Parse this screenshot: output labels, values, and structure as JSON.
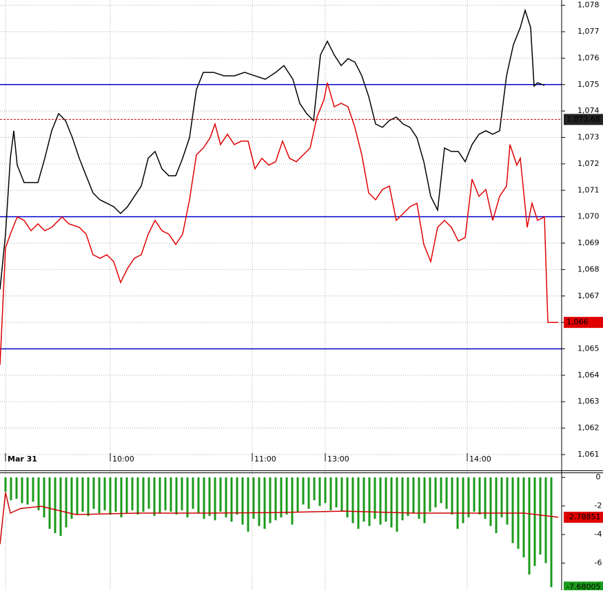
{
  "chart_data": [
    {
      "type": "line",
      "xlim": [
        0,
        204
      ],
      "xticks": [
        {
          "value": 2,
          "label": "Mar 31"
        },
        {
          "value": 40,
          "label": "10:00"
        },
        {
          "value": 91.5,
          "label": "11:00"
        },
        {
          "value": 118,
          "label": "13:00"
        },
        {
          "value": 169.5,
          "label": "14:00"
        }
      ],
      "ylim": [
        1060.4,
        1078.2
      ],
      "yticks": [
        {
          "value": 1061,
          "label": "1,061"
        },
        {
          "value": 1062,
          "label": "1,062"
        },
        {
          "value": 1063,
          "label": "1,063"
        },
        {
          "value": 1064,
          "label": "1,064"
        },
        {
          "value": 1065,
          "label": "1,065"
        },
        {
          "value": 1066,
          "label": "1,066"
        },
        {
          "value": 1067,
          "label": "1,067"
        },
        {
          "value": 1068,
          "label": "1,068"
        },
        {
          "value": 1069,
          "label": "1,069"
        },
        {
          "value": 1070,
          "label": "1,070"
        },
        {
          "value": 1071,
          "label": "1,071"
        },
        {
          "value": 1072,
          "label": "1,072"
        },
        {
          "value": 1073,
          "label": "1,073"
        },
        {
          "value": 1074,
          "label": "1,074"
        },
        {
          "value": 1075,
          "label": "1,075"
        },
        {
          "value": 1076,
          "label": "1,076"
        },
        {
          "value": 1077,
          "label": "1,077"
        },
        {
          "value": 1078,
          "label": "1,078"
        }
      ],
      "grid": true,
      "hlines": [
        {
          "value": 1075,
          "color": "#0000cc"
        },
        {
          "value": 1070,
          "color": "#0000cc"
        },
        {
          "value": 1065,
          "color": "#0000cc"
        }
      ],
      "series": [
        {
          "color": "#000000",
          "x": [
            0,
            2,
            3.75,
            5,
            6.25,
            8.75,
            11.25,
            13.75,
            16.25,
            18.75,
            21.25,
            23.75,
            26.25,
            28.75,
            31.25,
            33.75,
            36.25,
            38.75,
            41.25,
            43.75,
            46.25,
            48.75,
            51.25,
            53.75,
            56.25,
            58.75,
            61.25,
            63.75,
            66.25,
            68.75,
            71.25,
            73.75,
            77.5,
            81.25,
            85,
            88.75,
            92.5,
            96.25,
            100,
            103,
            106.25,
            108.75,
            111.25,
            113.75,
            116.25,
            118.75,
            121.25,
            123.75,
            126.25,
            128.75,
            131.25,
            133.75,
            136.25,
            138.75,
            141.25,
            143.75,
            146.25,
            148.75,
            151.25,
            153.75,
            156.25,
            158.75,
            161.25,
            163.75,
            166.25,
            168.75,
            171.25,
            173.75,
            176.25,
            178.75,
            181.25,
            183.75,
            186.25,
            188.75,
            190.5,
            192.5,
            193.75,
            195,
            197.5
          ],
          "values": [
            1067.25,
            1069.34,
            1072.21,
            1073.25,
            1071.95,
            1071.29,
            1071.29,
            1071.29,
            1072.21,
            1073.25,
            1073.9,
            1073.64,
            1072.99,
            1072.21,
            1071.55,
            1070.9,
            1070.64,
            1070.51,
            1070.38,
            1070.12,
            1070.38,
            1070.77,
            1071.16,
            1072.21,
            1072.47,
            1071.81,
            1071.55,
            1071.55,
            1072.21,
            1072.99,
            1074.81,
            1075.46,
            1075.46,
            1075.33,
            1075.33,
            1075.46,
            1075.33,
            1075.2,
            1075.46,
            1075.72,
            1075.2,
            1074.29,
            1073.9,
            1073.64,
            1076.12,
            1076.64,
            1076.12,
            1075.72,
            1075.98,
            1075.85,
            1075.33,
            1074.55,
            1073.51,
            1073.38,
            1073.64,
            1073.77,
            1073.51,
            1073.38,
            1072.99,
            1072.08,
            1070.77,
            1070.25,
            1072.6,
            1072.47,
            1072.47,
            1072.08,
            1072.73,
            1073.12,
            1073.25,
            1073.12,
            1073.25,
            1075.33,
            1076.51,
            1077.16,
            1077.81,
            1077.16,
            1074.94,
            1075.07,
            1074.97
          ]
        },
        {
          "color": "#e00000",
          "x": [
            0,
            2,
            3.75,
            6.25,
            8.75,
            11.25,
            13.75,
            16.25,
            18.75,
            22.5,
            25,
            28.75,
            31.25,
            33.75,
            36.25,
            38.75,
            41.25,
            43.75,
            46.25,
            48.75,
            51.25,
            53.75,
            56.25,
            58.75,
            61.25,
            63.75,
            66.25,
            68.75,
            71.25,
            73.75,
            76.25,
            78,
            80,
            82.5,
            85,
            87.5,
            90,
            92.5,
            95,
            97.5,
            100,
            102.5,
            105,
            107.5,
            110,
            112.5,
            115,
            117.5,
            118.75,
            121.25,
            123.75,
            126.25,
            128.75,
            131.25,
            133.75,
            136.25,
            138.75,
            141.25,
            143.75,
            146.25,
            148.75,
            151.25,
            153.75,
            156.25,
            158.75,
            161.25,
            163.75,
            166.25,
            168.75,
            171.25,
            173.75,
            176.25,
            178.75,
            181.25,
            183.75,
            185,
            187.5,
            188.75,
            191.25,
            193,
            195,
            197.5,
            198.75,
            202.5
          ],
          "values": [
            1064.39,
            1068.82,
            1069.34,
            1069.99,
            1069.86,
            1069.47,
            1069.73,
            1069.47,
            1069.6,
            1069.99,
            1069.73,
            1069.6,
            1069.34,
            1068.56,
            1068.43,
            1068.56,
            1068.3,
            1067.51,
            1068.04,
            1068.43,
            1068.56,
            1069.34,
            1069.86,
            1069.47,
            1069.34,
            1068.95,
            1069.34,
            1070.64,
            1072.34,
            1072.6,
            1072.99,
            1073.51,
            1072.73,
            1073.12,
            1072.73,
            1072.86,
            1072.86,
            1071.81,
            1072.21,
            1071.95,
            1072.08,
            1072.86,
            1072.21,
            1072.08,
            1072.34,
            1072.6,
            1073.77,
            1074.42,
            1075.07,
            1074.16,
            1074.29,
            1074.16,
            1073.38,
            1072.34,
            1070.9,
            1070.64,
            1071.03,
            1071.16,
            1069.86,
            1070.12,
            1070.38,
            1070.51,
            1068.95,
            1068.3,
            1069.6,
            1069.86,
            1069.6,
            1069.08,
            1069.21,
            1071.42,
            1070.77,
            1071.03,
            1069.86,
            1070.77,
            1071.16,
            1072.73,
            1071.95,
            1072.21,
            1069.6,
            1070.51,
            1069.86,
            1069.99,
            1066.0,
            1066.0
          ]
        }
      ],
      "markers": [
        {
          "value": 1073.68,
          "label": "1,073.68",
          "color": "#222222",
          "line_color": "#cc0000"
        },
        {
          "value": 1066,
          "label": "1,066",
          "color": "#e00000"
        }
      ]
    },
    {
      "type": "bar",
      "xlim": [
        0,
        204
      ],
      "ylim": [
        -7.9,
        0.25
      ],
      "yticks": [
        0,
        -2,
        -4,
        -6
      ],
      "color": "#1a9a1a",
      "x": [
        2,
        4,
        6,
        8,
        10,
        12,
        14,
        16,
        18,
        20,
        22,
        24,
        26,
        28,
        30,
        32,
        34,
        36,
        38,
        40,
        42,
        44,
        46,
        48,
        50,
        52,
        54,
        56,
        58,
        60,
        62,
        64,
        66,
        68,
        70,
        72,
        74,
        76,
        78,
        80,
        82,
        84,
        86,
        88,
        90,
        92,
        94,
        96,
        98,
        100,
        102,
        104,
        106,
        108,
        110,
        112,
        114,
        116,
        118,
        120,
        122,
        124,
        126,
        128,
        130,
        132,
        134,
        136,
        138,
        140,
        142,
        144,
        146,
        148,
        150,
        152,
        154,
        156,
        158,
        160,
        162,
        164,
        166,
        168,
        170,
        172,
        174,
        176,
        178,
        180,
        182,
        184,
        186,
        188,
        190,
        192,
        194,
        196,
        198,
        200
      ],
      "values": [
        -1.0,
        -1.6,
        -1.5,
        -1.8,
        -1.9,
        -1.7,
        -2.3,
        -2.8,
        -3.6,
        -3.9,
        -4.1,
        -3.5,
        -2.9,
        -2.6,
        -2.4,
        -2.7,
        -2.2,
        -2.5,
        -2.3,
        -2.6,
        -2.4,
        -2.8,
        -2.5,
        -2.3,
        -2.6,
        -2.4,
        -2.2,
        -2.7,
        -2.5,
        -2.3,
        -2.4,
        -2.6,
        -2.3,
        -2.8,
        -2.2,
        -2.5,
        -2.9,
        -2.7,
        -3.0,
        -2.4,
        -2.8,
        -3.1,
        -2.6,
        -3.3,
        -3.8,
        -2.9,
        -3.4,
        -3.6,
        -3.2,
        -3.0,
        -2.8,
        -2.6,
        -3.3,
        -2.4,
        -1.9,
        -2.2,
        -1.6,
        -2.0,
        -1.8,
        -2.3,
        -2.1,
        -2.4,
        -2.8,
        -3.2,
        -3.6,
        -3.1,
        -3.4,
        -2.9,
        -3.3,
        -3.1,
        -3.5,
        -3.8,
        -3.0,
        -2.7,
        -2.5,
        -2.9,
        -3.2,
        -2.4,
        -2.1,
        -1.8,
        -2.2,
        -2.6,
        -3.6,
        -3.2,
        -2.8,
        -2.4,
        -2.6,
        -2.9,
        -3.4,
        -3.9,
        -2.8,
        -3.3,
        -4.6,
        -5.0,
        -5.6,
        -6.8,
        -6.2,
        -5.4,
        -6.0,
        -7.68005
      ],
      "line": {
        "color": "#cc0000",
        "x": [
          0,
          2,
          3.75,
          7.5,
          15,
          20,
          27.5,
          50,
          75,
          100,
          125,
          150,
          175,
          190,
          202.5
        ],
        "values": [
          -4.68,
          -1.05,
          -2.5,
          -2.17,
          -2.02,
          -2.26,
          -2.6,
          -2.5,
          -2.5,
          -2.46,
          -2.36,
          -2.5,
          -2.5,
          -2.5,
          -2.78851
        ]
      },
      "markers": [
        {
          "value": -2.78851,
          "label": "-2.78851",
          "color": "#e00000"
        },
        {
          "value": -7.68005,
          "label": "-7.68005",
          "color": "#1a9a1a"
        }
      ]
    }
  ]
}
